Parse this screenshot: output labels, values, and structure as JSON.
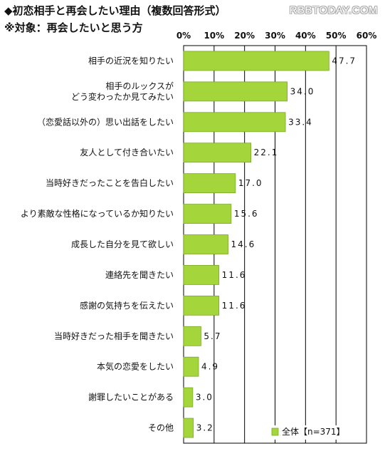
{
  "header": {
    "title": "◆初恋相手と再会したい理由（複数回答形式）",
    "subtitle": "※対象：再会したいと思う方",
    "watermark": "RBBTODAY.COM"
  },
  "colors": {
    "bar_fill": "#a4d63c",
    "bar_stroke": "#7aa82a"
  },
  "chart_data": {
    "type": "bar",
    "orientation": "horizontal",
    "categories": [
      [
        "相手の近況を知りたい"
      ],
      [
        "相手のルックスが",
        "どう変わったか見てみたい"
      ],
      [
        "（恋愛話以外の）思い出話をしたい"
      ],
      [
        "友人として付き合いたい"
      ],
      [
        "当時好きだったことを告白したい"
      ],
      [
        "より素敵な性格になっているか知りたい"
      ],
      [
        "成長した自分を見て欲しい"
      ],
      [
        "連絡先を聞きたい"
      ],
      [
        "感謝の気持ちを伝えたい"
      ],
      [
        "当時好きだった相手を聞きたい"
      ],
      [
        "本気の恋愛をしたい"
      ],
      [
        "謝罪したいことがある"
      ],
      [
        "その他"
      ]
    ],
    "values": [
      47.7,
      34.0,
      33.4,
      22.1,
      17.0,
      15.6,
      14.6,
      11.6,
      11.6,
      5.7,
      4.9,
      3.0,
      3.2
    ],
    "value_labels": [
      "47.7",
      "34.0",
      "33.4",
      "22.1",
      "17.0",
      "15.6",
      "14.6",
      "11.6",
      "11.6",
      "5.7",
      "4.9",
      "3.0",
      "3.2"
    ],
    "series": [
      {
        "name": "全体【n=371】"
      }
    ],
    "xlim": [
      0,
      60
    ],
    "xticks": [
      0,
      10,
      20,
      30,
      40,
      50,
      60
    ],
    "xtick_labels": [
      "0%",
      "10%",
      "20%",
      "30%",
      "40%",
      "50%",
      "60%"
    ],
    "grid": true,
    "legend_position": "bottom-right"
  }
}
